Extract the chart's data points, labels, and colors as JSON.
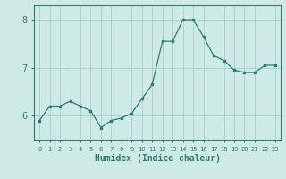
{
  "x": [
    0,
    1,
    2,
    3,
    4,
    5,
    6,
    7,
    8,
    9,
    10,
    11,
    12,
    13,
    14,
    15,
    16,
    17,
    18,
    19,
    20,
    21,
    22,
    23
  ],
  "y": [
    5.9,
    6.2,
    6.2,
    6.3,
    6.2,
    6.1,
    5.75,
    5.9,
    5.95,
    6.05,
    6.35,
    6.65,
    7.55,
    7.55,
    8.0,
    8.0,
    7.65,
    7.25,
    7.15,
    6.95,
    6.9,
    6.9,
    7.05,
    7.05
  ],
  "xlabel": "Humidex (Indice chaleur)",
  "ylabel": "",
  "ylim": [
    5.5,
    8.3
  ],
  "xlim": [
    -0.5,
    23.5
  ],
  "yticks": [
    6,
    7,
    8
  ],
  "xtick_labels": [
    "0",
    "1",
    "2",
    "3",
    "4",
    "5",
    "6",
    "7",
    "8",
    "9",
    "10",
    "11",
    "12",
    "13",
    "14",
    "15",
    "16",
    "17",
    "18",
    "19",
    "20",
    "21",
    "22",
    "23"
  ],
  "line_color": "#2e7d6e",
  "marker_color": "#2e7d6e",
  "bg_color": "#ceeae6",
  "grid_color": "#aad4ce",
  "axis_color": "#2e7d6e",
  "tick_color": "#2e7d6e",
  "label_color": "#2e7d6e"
}
